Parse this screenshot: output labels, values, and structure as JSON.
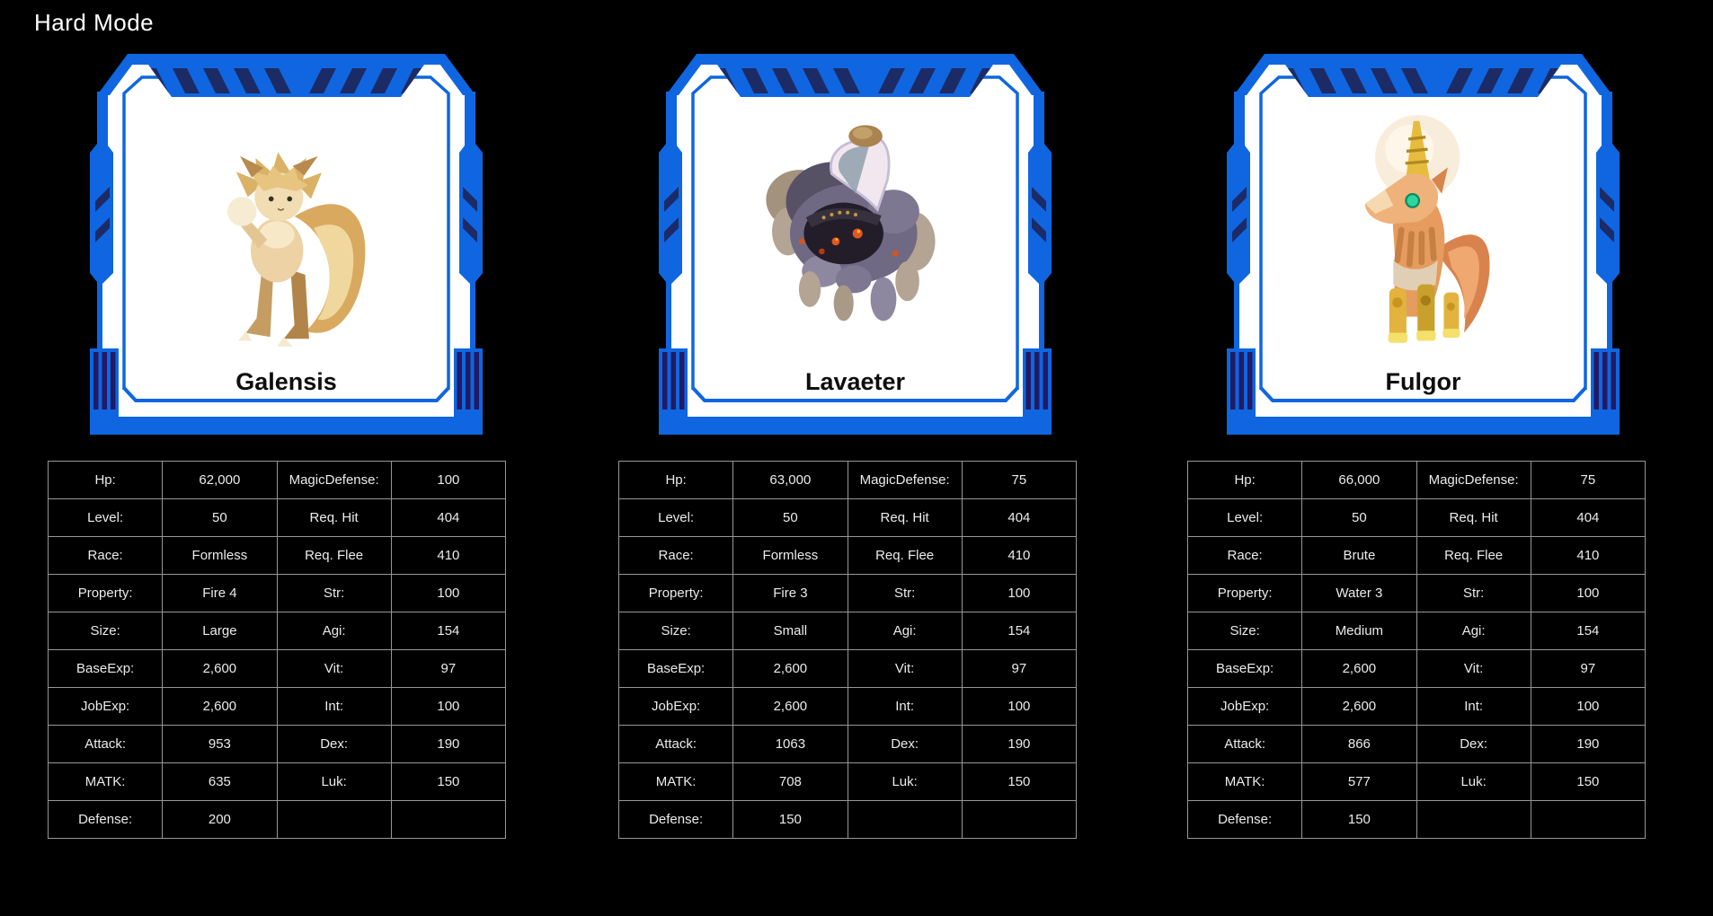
{
  "page_title": "Hard Mode",
  "colors": {
    "background": "#000000",
    "frame_blue": "#0F66E0",
    "frame_navy": "#1C2B66",
    "frame_bar_navy": "#221A63",
    "card_interior": "#FFFFFF",
    "table_border": "#979797",
    "table_text": "#EBEBEB",
    "name_text": "#0E0E0E",
    "title_text": "#FFFFFF"
  },
  "monsters": [
    {
      "name": "Galensis",
      "sprite": "galensis-sprite",
      "stats": [
        {
          "label": "Hp:",
          "value": "62,000",
          "label2": "MagicDefense:",
          "value2": "100"
        },
        {
          "label": "Level:",
          "value": "50",
          "label2": "Req. Hit",
          "value2": "404"
        },
        {
          "label": "Race:",
          "value": "Formless",
          "label2": "Req. Flee",
          "value2": "410"
        },
        {
          "label": "Property:",
          "value": "Fire 4",
          "label2": "Str:",
          "value2": "100"
        },
        {
          "label": "Size:",
          "value": "Large",
          "label2": "Agi:",
          "value2": "154"
        },
        {
          "label": "BaseExp:",
          "value": "2,600",
          "label2": "Vit:",
          "value2": "97"
        },
        {
          "label": "JobExp:",
          "value": "2,600",
          "label2": "Int:",
          "value2": "100"
        },
        {
          "label": "Attack:",
          "value": "953",
          "label2": "Dex:",
          "value2": "190"
        },
        {
          "label": "MATK:",
          "value": "635",
          "label2": "Luk:",
          "value2": "150"
        },
        {
          "label": "Defense:",
          "value": "200",
          "label2": "",
          "value2": ""
        }
      ]
    },
    {
      "name": "Lavaeter",
      "sprite": "lavaeter-sprite",
      "stats": [
        {
          "label": "Hp:",
          "value": "63,000",
          "label2": "MagicDefense:",
          "value2": "75"
        },
        {
          "label": "Level:",
          "value": "50",
          "label2": "Req. Hit",
          "value2": "404"
        },
        {
          "label": "Race:",
          "value": "Formless",
          "label2": "Req. Flee",
          "value2": "410"
        },
        {
          "label": "Property:",
          "value": "Fire 3",
          "label2": "Str:",
          "value2": "100"
        },
        {
          "label": "Size:",
          "value": "Small",
          "label2": "Agi:",
          "value2": "154"
        },
        {
          "label": "BaseExp:",
          "value": "2,600",
          "label2": "Vit:",
          "value2": "97"
        },
        {
          "label": "JobExp:",
          "value": "2,600",
          "label2": "Int:",
          "value2": "100"
        },
        {
          "label": "Attack:",
          "value": "1063",
          "label2": "Dex:",
          "value2": "190"
        },
        {
          "label": "MATK:",
          "value": "708",
          "label2": "Luk:",
          "value2": "150"
        },
        {
          "label": "Defense:",
          "value": "150",
          "label2": "",
          "value2": ""
        }
      ]
    },
    {
      "name": "Fulgor",
      "sprite": "fulgor-sprite",
      "stats": [
        {
          "label": "Hp:",
          "value": "66,000",
          "label2": "MagicDefense:",
          "value2": "75"
        },
        {
          "label": "Level:",
          "value": "50",
          "label2": "Req. Hit",
          "value2": "404"
        },
        {
          "label": "Race:",
          "value": "Brute",
          "label2": "Req. Flee",
          "value2": "410"
        },
        {
          "label": "Property:",
          "value": "Water 3",
          "label2": "Str:",
          "value2": "100"
        },
        {
          "label": "Size:",
          "value": "Medium",
          "label2": "Agi:",
          "value2": "154"
        },
        {
          "label": "BaseExp:",
          "value": "2,600",
          "label2": "Vit:",
          "value2": "97"
        },
        {
          "label": "JobExp:",
          "value": "2,600",
          "label2": "Int:",
          "value2": "100"
        },
        {
          "label": "Attack:",
          "value": "866",
          "label2": "Dex:",
          "value2": "190"
        },
        {
          "label": "MATK:",
          "value": "577",
          "label2": "Luk:",
          "value2": "150"
        },
        {
          "label": "Defense:",
          "value": "150",
          "label2": "",
          "value2": ""
        }
      ]
    }
  ]
}
